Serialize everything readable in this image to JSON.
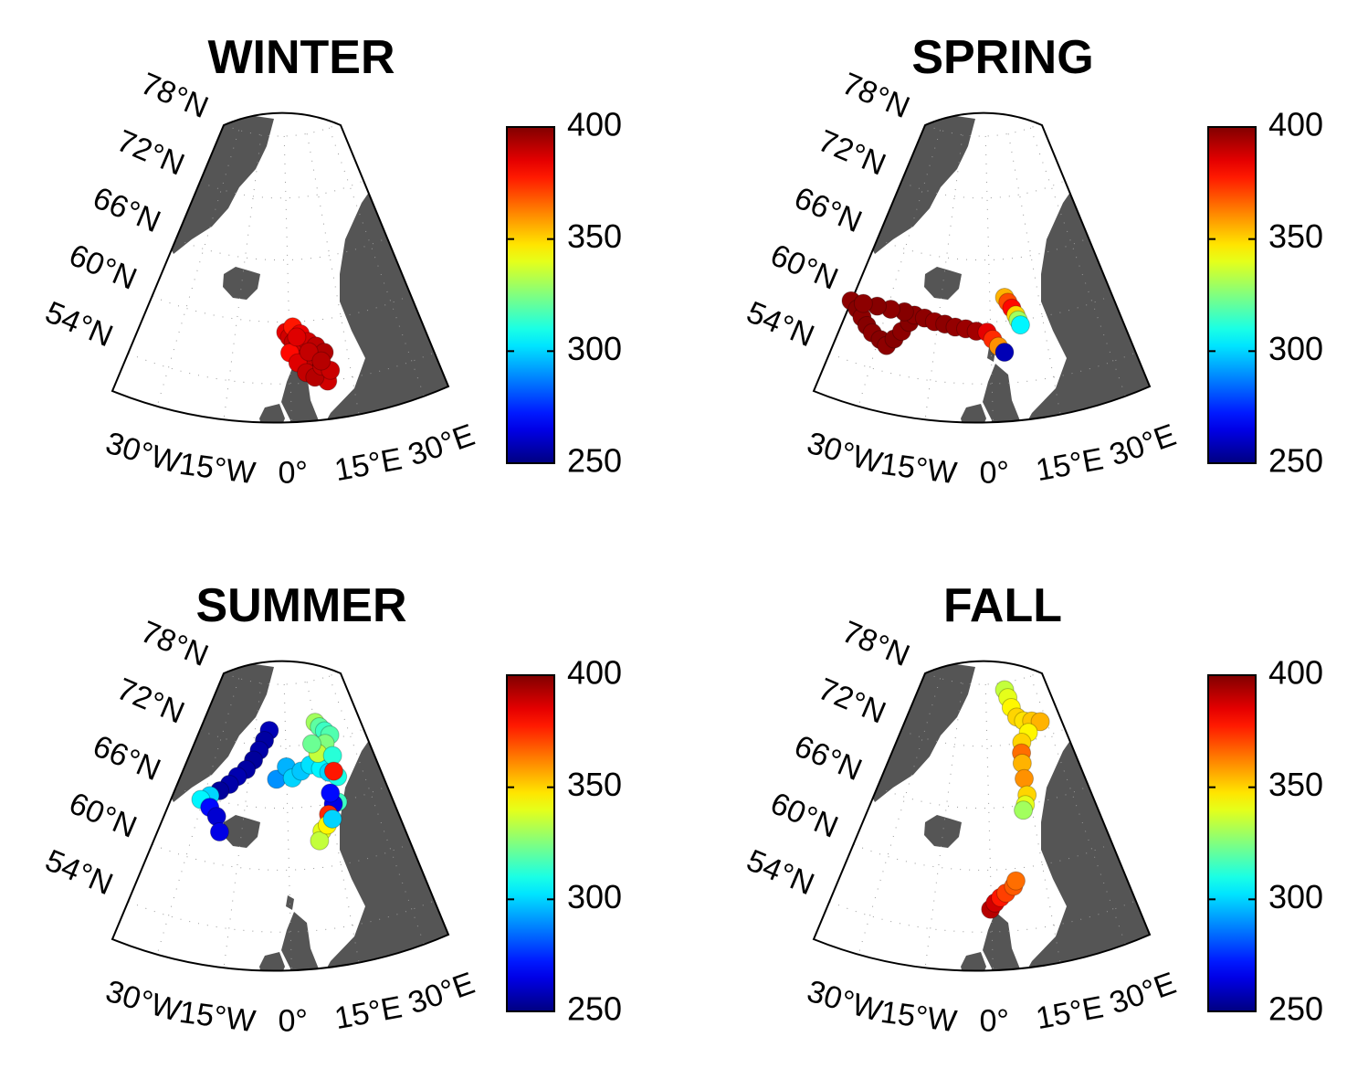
{
  "figure": {
    "colorbar": {
      "colormap": "jet",
      "lim": [
        250,
        400
      ],
      "ticks": [
        250,
        300,
        350,
        400
      ]
    },
    "lat_ticks": [
      {
        "value": 54,
        "label": "54°N"
      },
      {
        "value": 60,
        "label": "60°N"
      },
      {
        "value": 66,
        "label": "66°N"
      },
      {
        "value": 72,
        "label": "72°N"
      },
      {
        "value": 78,
        "label": "78°N"
      }
    ],
    "lon_ticks": [
      {
        "value": -30,
        "label": "30°W"
      },
      {
        "value": -15,
        "label": "15°W"
      },
      {
        "value": 0,
        "label": "0°"
      },
      {
        "value": 15,
        "label": "15°E"
      },
      {
        "value": 30,
        "label": "30°E"
      }
    ],
    "panels": [
      {
        "title": "WINTER",
        "lon": [
          -1,
          0,
          1,
          2,
          3,
          4,
          5,
          6,
          7,
          8,
          9,
          0,
          2,
          4,
          6,
          8,
          1,
          3,
          5,
          7,
          9,
          10,
          2,
          5,
          8
        ],
        "lat": [
          59,
          58.5,
          58,
          57.5,
          57,
          56.5,
          56,
          55.5,
          55,
          54.5,
          54,
          57,
          56,
          55,
          54.5,
          55.5,
          59.5,
          58.8,
          58,
          57.5,
          56.8,
          55,
          58.5,
          57,
          56
        ],
        "values": [
          385,
          388,
          390,
          392,
          388,
          390,
          393,
          391,
          389,
          392,
          388,
          380,
          386,
          390,
          392,
          390,
          378,
          384,
          388,
          391,
          393,
          389,
          386,
          390,
          392
        ]
      },
      {
        "title": "SPRING",
        "lon": [
          -40.5,
          -38,
          -36,
          -34,
          -32,
          -29.5,
          -27.5,
          -26,
          -24.5,
          -23,
          -22,
          -25,
          -29,
          -33,
          -37,
          -19,
          -16,
          -13,
          -10,
          -7,
          -4,
          -1,
          0.5,
          2,
          3.5,
          4.6,
          5.5,
          6.5,
          7.5,
          8,
          8.5
        ],
        "lat": [
          59.5,
          59,
          58.4,
          57.8,
          57.3,
          56.9,
          56.5,
          57.3,
          58.2,
          59.2,
          60,
          60.1,
          60,
          59.9,
          59.7,
          59.9,
          59.7,
          59.6,
          59.4,
          59.3,
          59.1,
          59,
          58.3,
          57.6,
          57,
          62.3,
          61.8,
          61.2,
          60.5,
          60,
          59.5
        ],
        "values": [
          398,
          399,
          398,
          399,
          398,
          399,
          398,
          399,
          398,
          399,
          398,
          399,
          398,
          399,
          398,
          398,
          397,
          398,
          397,
          396,
          395,
          385,
          375,
          360,
          258,
          355,
          370,
          380,
          350,
          330,
          305
        ]
      },
      {
        "title": "SUMMER",
        "lon": [
          -8,
          -10,
          -12,
          -14,
          -16.5,
          -19.5,
          -22,
          -25,
          -28,
          -30.7,
          -27,
          -24,
          -22,
          -4,
          0,
          2.3,
          6,
          10,
          14,
          17,
          20,
          18,
          16.3,
          15.3,
          17,
          19,
          21,
          18,
          14,
          12,
          20,
          16,
          14,
          11,
          9.8,
          13,
          15,
          19
        ],
        "lat": [
          73.5,
          72.5,
          71.5,
          70.5,
          69.5,
          68.7,
          67.8,
          67,
          66.3,
          65.7,
          65.2,
          64.5,
          63.1,
          68.8,
          70,
          68.9,
          69.5,
          70,
          69.5,
          69,
          68.4,
          66,
          65.9,
          74,
          73.5,
          73,
          72.5,
          71.8,
          71,
          72,
          70.5,
          67,
          65,
          63.5,
          62.6,
          64,
          64.5,
          69
        ],
        "values": [
          258,
          255,
          256,
          254,
          255,
          257,
          256,
          254,
          300,
          305,
          270,
          262,
          265,
          290,
          295,
          300,
          298,
          302,
          305,
          300,
          310,
          315,
          265,
          330,
          320,
          315,
          318,
          325,
          335,
          322,
          312,
          270,
          375,
          340,
          335,
          345,
          300,
          378
        ]
      },
      {
        "title": "FALL",
        "lon": [
          11.8,
          13,
          14,
          16,
          19,
          23,
          27,
          20,
          16,
          15,
          14.5,
          14.2,
          14.2,
          13,
          12,
          -0.2,
          1,
          2.5,
          4,
          6.2,
          7
        ],
        "lat": [
          77.3,
          76.5,
          75.5,
          74.5,
          74,
          73.8,
          73.5,
          72.8,
          72,
          71,
          70,
          68.5,
          66.9,
          66,
          65.5,
          56.2,
          56.8,
          57.3,
          57.7,
          58.3,
          58.8
        ],
        "values": [
          335,
          340,
          345,
          350,
          348,
          352,
          355,
          345,
          350,
          365,
          355,
          360,
          350,
          340,
          330,
          392,
          388,
          378,
          372,
          368,
          365
        ]
      }
    ]
  }
}
